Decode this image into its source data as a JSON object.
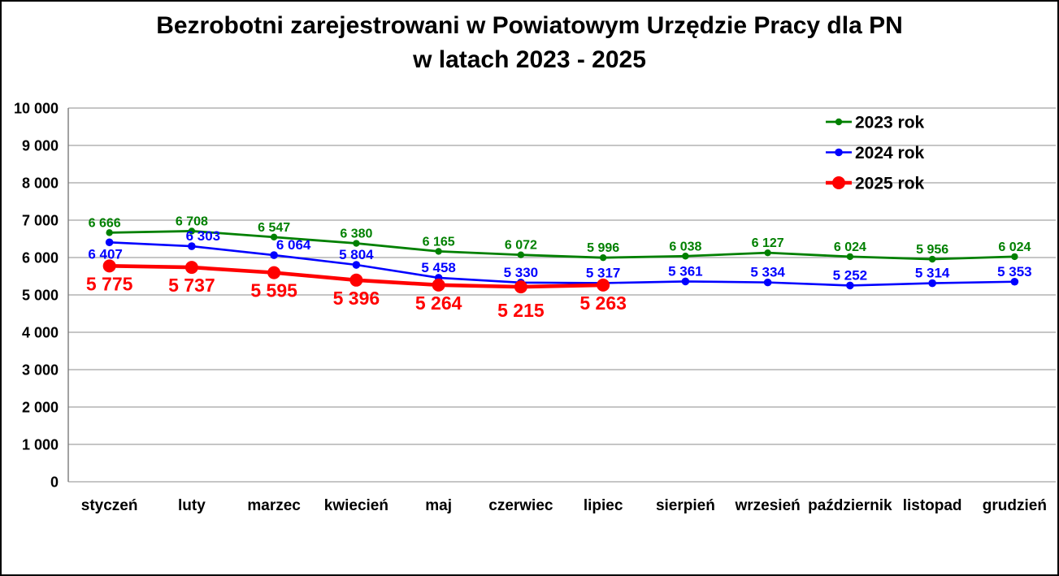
{
  "title": {
    "line1": "Bezrobotni zarejestrowani w Powiatowym Urzędzie Pracy dla PN",
    "line2": "w latach 2023 - 2025"
  },
  "chart_data": {
    "type": "line",
    "title": "Bezrobotni zarejestrowani w Powiatowym Urzędzie Pracy dla PN w latach 2023 - 2025",
    "categories": [
      "styczeń",
      "luty",
      "marzec",
      "kwiecień",
      "maj",
      "czerwiec",
      "lipiec",
      "sierpień",
      "wrzesień",
      "październik",
      "listopad",
      "grudzień"
    ],
    "series": [
      {
        "name": "2023 rok",
        "color": "#008000",
        "line_width": 2.8,
        "marker_radius": 4.2,
        "label_size": 16,
        "label_dy": -7,
        "values": [
          6666,
          6708,
          6547,
          6380,
          6165,
          6072,
          5996,
          6038,
          6127,
          6024,
          5956,
          6024
        ]
      },
      {
        "name": "2024 rok",
        "color": "#0000ff",
        "line_width": 2.6,
        "marker_radius": 4.8,
        "label_size": 17,
        "label_dy": -7,
        "values": [
          6407,
          6303,
          6064,
          5804,
          5458,
          5330,
          5317,
          5361,
          5334,
          5252,
          5314,
          5353
        ]
      },
      {
        "name": "2025 rok",
        "color": "#ff0000",
        "line_width": 4.6,
        "marker_radius": 8,
        "label_size": 23,
        "label_dy": 30,
        "values": [
          5775,
          5737,
          5595,
          5396,
          5264,
          5215,
          5263
        ]
      }
    ],
    "label_overrides": [
      {
        "series": 0,
        "index": 0,
        "dx": -6
      },
      {
        "series": 1,
        "index": 0,
        "dx": -5,
        "dy": 20
      },
      {
        "series": 1,
        "index": 1,
        "dx": 14
      },
      {
        "series": 1,
        "index": 2,
        "dx": 24
      },
      {
        "series": 2,
        "index": 5,
        "dy": 37
      }
    ],
    "xlabel": "",
    "ylabel": "",
    "ylim": [
      0,
      10000
    ],
    "ytick_step": 1000,
    "ytick_labels": [
      "0",
      "1 000",
      "2 000",
      "3 000",
      "4 000",
      "5 000",
      "6 000",
      "7 000",
      "8 000",
      "9 000",
      "10 000"
    ],
    "grid": true,
    "data_labels": true,
    "legend_position": "top-right",
    "legend": [
      "2023 rok",
      "2024 rok",
      "2025 rok"
    ],
    "colors": {
      "gridline": "#a3a3a3",
      "axis": "#7a7a7a",
      "text": "#000000"
    }
  }
}
